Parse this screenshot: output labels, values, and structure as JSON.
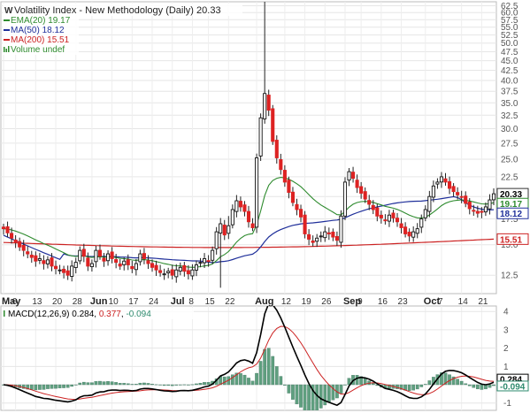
{
  "chart_data": {
    "type": "candlestick",
    "title": "Volatility Index - New Methodology (Daily)",
    "last_value": "20.33",
    "legend": [
      {
        "key": "ema20",
        "label": "EMA(20)",
        "value": "19.17",
        "color": "#2e8b2e"
      },
      {
        "key": "ma50",
        "label": "MA(50)",
        "value": "18.12",
        "color": "#1f2f9a"
      },
      {
        "key": "ma200",
        "label": "MA(200)",
        "value": "15.51",
        "color": "#cc2222"
      },
      {
        "key": "volume",
        "label": "Volume undef",
        "value": "",
        "color": "#2e8b2e"
      }
    ],
    "price_badges": [
      {
        "text": "20.33",
        "value": 20.33,
        "bg": "#ffffff",
        "fg": "#000000",
        "border": "#333333"
      },
      {
        "text": "19.17",
        "value": 19.17,
        "bg": "#ffffff",
        "fg": "#2e8b2e",
        "border": "#2e8b2e"
      },
      {
        "text": "18.12",
        "value": 18.12,
        "bg": "#ffffff",
        "fg": "#1f2f9a",
        "border": "#1f2f9a"
      },
      {
        "text": "15.51",
        "value": 15.51,
        "bg": "#ffffff",
        "fg": "#cc2222",
        "border": "#cc2222"
      }
    ],
    "y_ticks": [
      "12.5",
      "15.0",
      "17.5",
      "20.0",
      "22.5",
      "25.0",
      "27.5",
      "30.0",
      "32.5",
      "35.0",
      "37.5",
      "40.0",
      "42.5",
      "45.0",
      "47.5",
      "50.0",
      "52.5",
      "55.0",
      "57.5",
      "60.0",
      "62.5"
    ],
    "y_log_scale": true,
    "x_ticks": [
      {
        "label": "May",
        "month": true,
        "i": 0
      },
      {
        "label": "6",
        "month": false,
        "i": 3
      },
      {
        "label": "13",
        "month": false,
        "i": 8
      },
      {
        "label": "20",
        "month": false,
        "i": 13
      },
      {
        "label": "28",
        "month": false,
        "i": 18
      },
      {
        "label": "Jun",
        "month": true,
        "i": 22
      },
      {
        "label": "10",
        "month": false,
        "i": 27
      },
      {
        "label": "17",
        "month": false,
        "i": 32
      },
      {
        "label": "24",
        "month": false,
        "i": 37
      },
      {
        "label": "Jul",
        "month": true,
        "i": 42
      },
      {
        "label": "8",
        "month": false,
        "i": 47
      },
      {
        "label": "15",
        "month": false,
        "i": 51
      },
      {
        "label": "22",
        "month": false,
        "i": 56
      },
      {
        "label": "Aug",
        "month": true,
        "i": 63
      },
      {
        "label": "12",
        "month": false,
        "i": 70
      },
      {
        "label": "19",
        "month": false,
        "i": 75
      },
      {
        "label": "26",
        "month": false,
        "i": 80
      },
      {
        "label": "Sep",
        "month": true,
        "i": 85
      },
      {
        "label": "9",
        "month": false,
        "i": 89
      },
      {
        "label": "16",
        "month": false,
        "i": 94
      },
      {
        "label": "23",
        "month": false,
        "i": 99
      },
      {
        "label": "Oct",
        "month": true,
        "i": 105
      },
      {
        "label": "7",
        "month": false,
        "i": 109
      },
      {
        "label": "14",
        "month": false,
        "i": 114
      },
      {
        "label": "21",
        "month": false,
        "i": 119
      }
    ],
    "closes": [
      16.5,
      16.1,
      15.6,
      15.2,
      14.8,
      14.5,
      14.2,
      13.9,
      13.6,
      13.8,
      13.4,
      13.7,
      13.2,
      13.0,
      12.9,
      12.7,
      12.5,
      13.2,
      13.5,
      14.5,
      14.0,
      13.2,
      13.4,
      14.5,
      14.0,
      13.6,
      14.2,
      13.8,
      13.5,
      13.2,
      13.6,
      13.3,
      13.0,
      13.4,
      14.2,
      13.8,
      13.4,
      13.1,
      12.9,
      12.7,
      12.6,
      12.8,
      12.5,
      12.9,
      13.1,
      12.8,
      12.6,
      12.9,
      13.3,
      13.5,
      13.8,
      13.6,
      14.5,
      16.2,
      17.0,
      15.9,
      16.8,
      18.5,
      19.5,
      18.8,
      18.3,
      17.2,
      16.6,
      25.2,
      32.0,
      37.0,
      33.5,
      27.8,
      25.2,
      23.5,
      21.8,
      20.5,
      19.3,
      18.5,
      17.7,
      16.0,
      15.5,
      15.2,
      15.6,
      15.8,
      16.2,
      16.0,
      15.7,
      15.4,
      17.8,
      21.8,
      23.2,
      22.3,
      21.1,
      20.4,
      19.7,
      19.1,
      18.5,
      17.8,
      17.6,
      17.3,
      17.9,
      17.6,
      17.2,
      16.6,
      16.0,
      15.8,
      16.2,
      16.5,
      17.5,
      18.5,
      20.0,
      21.3,
      21.8,
      22.5,
      21.8,
      21.0,
      20.6,
      20.2,
      19.9,
      19.2,
      18.6,
      18.4,
      18.1,
      18.2,
      18.8,
      19.6,
      20.33
    ],
    "y_min": 11.2,
    "y_max": 64.0,
    "macd": {
      "label": "MACD(12,26,9)",
      "macd_value": "0.284",
      "signal_value": "0.377",
      "hist_value": "-0.094",
      "y_ticks": [
        "4",
        "3",
        "2",
        "1",
        "0",
        "-1"
      ],
      "y_range": [
        -1.4,
        4.3
      ],
      "colors": {
        "macd": "#000000",
        "signal": "#cc2222",
        "hist": "#5f9f7f"
      }
    }
  }
}
